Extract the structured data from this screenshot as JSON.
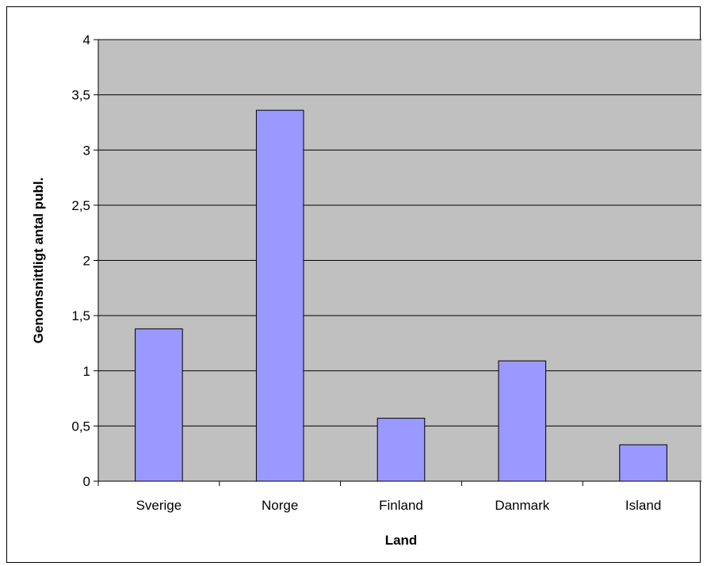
{
  "chart_data": {
    "type": "bar",
    "title": "",
    "xlabel": "Land",
    "ylabel": "Genomsnittligt antal publ.",
    "categories": [
      "Sverige",
      "Norge",
      "Finland",
      "Danmark",
      "Island"
    ],
    "values": [
      1.38,
      3.36,
      0.57,
      1.09,
      0.33
    ],
    "ylim": [
      0,
      4
    ],
    "yticks": [
      0,
      0.5,
      1,
      1.5,
      2,
      2.5,
      3,
      3.5,
      4
    ],
    "ytick_labels": [
      "0",
      "0,5",
      "1",
      "1,5",
      "2",
      "2,5",
      "3",
      "3,5",
      "4"
    ],
    "grid": true,
    "legend": "none",
    "colors": {
      "plot_background": "#c0c0c0",
      "bar_fill": "#9999ff",
      "bar_stroke": "#000000",
      "gridline": "#000000"
    }
  }
}
